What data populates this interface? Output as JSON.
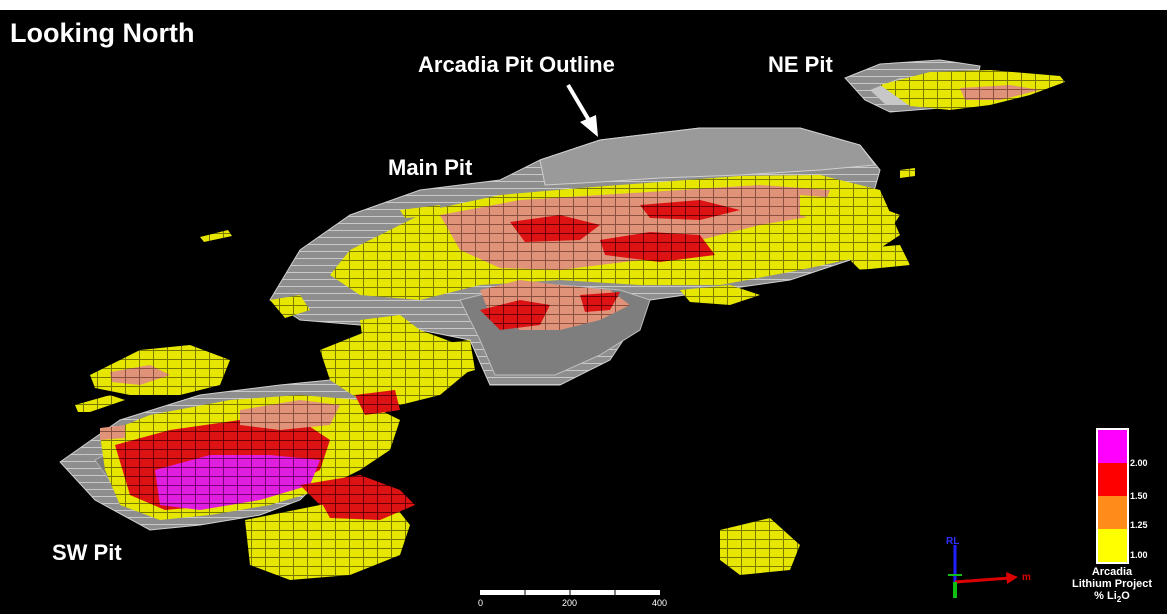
{
  "figure": {
    "title": "Looking North",
    "labels": {
      "arcadia_pit_outline": "Arcadia Pit Outline",
      "ne_pit": "NE Pit",
      "main_pit": "Main Pit",
      "sw_pit": "SW Pit"
    },
    "scale_bar": {
      "ticks": [
        "0",
        "200",
        "400"
      ]
    },
    "legend": {
      "caption_line1": "Arcadia",
      "caption_line2": "Lithium Project",
      "caption_line3": "% Li",
      "caption_sub": "2",
      "caption_line3_suffix": "O",
      "entries": [
        {
          "color": "#ff00ff",
          "value": "2.00"
        },
        {
          "color": "#ff0000",
          "value": "1.50"
        },
        {
          "color": "#ff8c1a",
          "value": "1.25"
        },
        {
          "color": "#ffff00",
          "value": "1.00"
        }
      ]
    },
    "axes_triad": {
      "up_label": "RL",
      "east_label": "m"
    },
    "colors": {
      "background": "#000000",
      "pit_shell": "#8c8c8c",
      "grade_low": "#e6e600",
      "grade_mid": "#e0957a",
      "grade_high": "#dd1010",
      "grade_top": "#e61ee6"
    }
  }
}
